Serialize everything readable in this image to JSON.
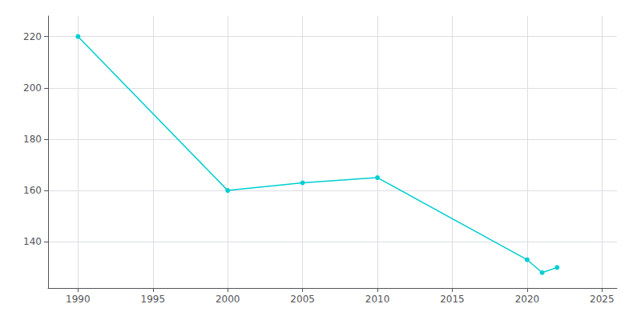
{
  "chart_data": {
    "type": "line",
    "x": [
      1990,
      2000,
      2005,
      2010,
      2020,
      2021,
      2022
    ],
    "values": [
      220,
      160,
      163,
      165,
      133,
      128,
      130
    ],
    "color": "#00CED1",
    "marker": "circle",
    "xlim": [
      1988,
      2026
    ],
    "ylim": [
      122,
      228
    ],
    "xticks": [
      1990,
      1995,
      2000,
      2005,
      2010,
      2015,
      2020,
      2025
    ],
    "yticks": [
      140,
      160,
      180,
      200,
      220
    ],
    "grid": true
  }
}
